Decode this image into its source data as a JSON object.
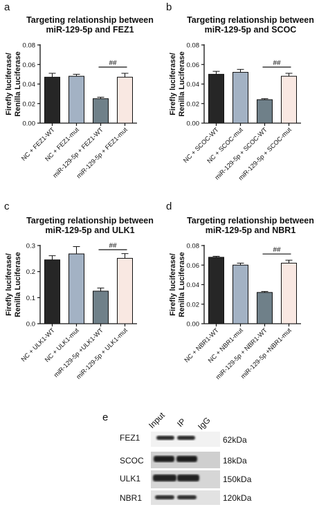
{
  "chart_data": [
    {
      "panel": "a",
      "type": "bar",
      "title_line1": "Targeting relationship between",
      "title_line2": "miR-129-5p and FEZ1",
      "ylabel_line1": "Firefly luciferase/",
      "ylabel_line2": "Renilla Luciferase",
      "ylim": [
        0,
        0.08
      ],
      "yticks": [
        "0.00",
        "0.02",
        "0.04",
        "0.06",
        "0.08"
      ],
      "tick_values": [
        0,
        0.02,
        0.04,
        0.06,
        0.08
      ],
      "categories": [
        "NC + FEZ1-WT",
        "NC + FEZ1-mut",
        "miR-129-5p + FEZ1-WT",
        "miR-129-5p + FEZ1-mut"
      ],
      "values": [
        0.047,
        0.048,
        0.025,
        0.047
      ],
      "errors": [
        0.004,
        0.002,
        0.0015,
        0.004
      ],
      "colors": [
        "#262626",
        "#a3b2c4",
        "#6f8089",
        "#f9e8e2"
      ],
      "annotation": "##"
    },
    {
      "panel": "b",
      "type": "bar",
      "title_line1": "Targeting relationship between",
      "title_line2": "miR-129-5p and SCOC",
      "ylabel_line1": "Firefly luciferase/",
      "ylabel_line2": "Renilla Luciferase",
      "ylim": [
        0,
        0.08
      ],
      "yticks": [
        "0.00",
        "0.02",
        "0.04",
        "0.06",
        "0.08"
      ],
      "tick_values": [
        0,
        0.02,
        0.04,
        0.06,
        0.08
      ],
      "categories": [
        "NC + SCOC-WT",
        "NC + SCOC-mut",
        "miR-129-5p + SCOC-WT",
        "miR-129-5p + SCOC-mut"
      ],
      "values": [
        0.05,
        0.052,
        0.024,
        0.048
      ],
      "errors": [
        0.003,
        0.003,
        0.001,
        0.003
      ],
      "colors": [
        "#262626",
        "#a3b2c4",
        "#6f8089",
        "#f9e8e2"
      ],
      "annotation": "##"
    },
    {
      "panel": "c",
      "type": "bar",
      "title_line1": "Targeting relationship between",
      "title_line2": "miR-129-5p and ULK1",
      "ylabel_line1": "Firefly luciferase/",
      "ylabel_line2": "Renilla Luciferase",
      "ylim": [
        0,
        0.3
      ],
      "yticks": [
        "0.0",
        "0.1",
        "0.2",
        "0.3"
      ],
      "tick_values": [
        0,
        0.1,
        0.2,
        0.3
      ],
      "categories": [
        "NC + ULK1-WT",
        "NC + ULK1-mut",
        "miR-129-5p +ULK1-WT",
        "miR-129-5p + ULK1-mut"
      ],
      "values": [
        0.245,
        0.268,
        0.125,
        0.251
      ],
      "errors": [
        0.016,
        0.028,
        0.012,
        0.018
      ],
      "colors": [
        "#262626",
        "#a3b2c4",
        "#6f8089",
        "#f9e8e2"
      ],
      "annotation": "##"
    },
    {
      "panel": "d",
      "type": "bar",
      "title_line1": "Targeting relationship between",
      "title_line2": "miR-129-5p and NBR1",
      "ylabel_line1": "Firefly luciferase/",
      "ylabel_line2": "Renilla Luciferase",
      "ylim": [
        0,
        0.08
      ],
      "yticks": [
        "0.00",
        "0.02",
        "0.04",
        "0.06",
        "0.08"
      ],
      "tick_values": [
        0,
        0.02,
        0.04,
        0.06,
        0.08
      ],
      "categories": [
        "NC + NBR1-WT",
        "NC + NBR1-mut",
        "miR-129-5p + NBR1-WT",
        "miR-129-5p +NBR1-mut"
      ],
      "values": [
        0.068,
        0.06,
        0.032,
        0.062
      ],
      "errors": [
        0.001,
        0.002,
        0.001,
        0.003
      ],
      "colors": [
        "#262626",
        "#a3b2c4",
        "#6f8089",
        "#f9e8e2"
      ],
      "annotation": "##"
    }
  ],
  "western_blot": {
    "panel": "e",
    "columns": [
      "Input",
      "IP",
      "IgG"
    ],
    "rows": [
      {
        "protein": "FEZ1",
        "size": "62kDa"
      },
      {
        "protein": "SCOC",
        "size": "18kDa"
      },
      {
        "protein": "ULK1",
        "size": "150kDa"
      },
      {
        "protein": "NBR1",
        "size": "120kDa"
      }
    ]
  }
}
